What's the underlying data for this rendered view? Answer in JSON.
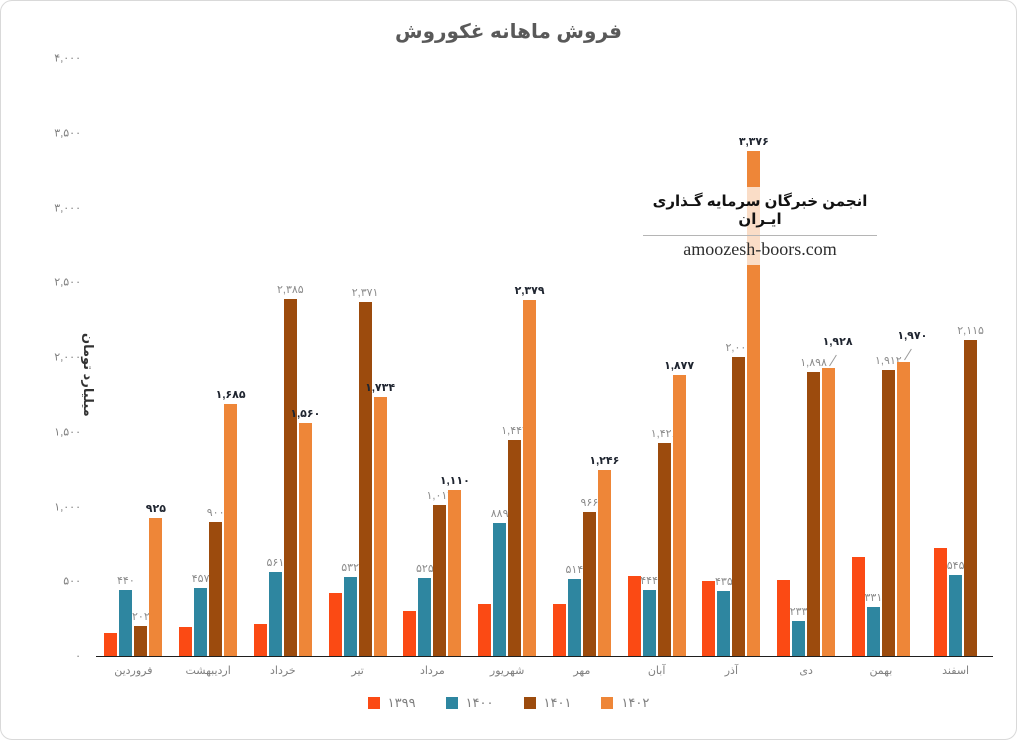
{
  "title": "فروش ماهانه غکوروش",
  "y_axis": {
    "title": "میلیارد تومان",
    "ticks": [
      "۴,۰۰۰",
      "۳,۵۰۰",
      "۳,۰۰۰",
      "۲,۵۰۰",
      "۲,۰۰۰",
      "۱,۵۰۰",
      "۱,۰۰۰",
      "۵۰۰",
      "۰"
    ],
    "max": 4000
  },
  "watermark": {
    "line1": "انجمن خبرگان سرمایه گـذاری ایـران",
    "line2": "amoozesh-boors.com"
  },
  "colors": {
    "series_1399": "#fb4a14",
    "series_1400": "#2e86a0",
    "series_1401": "#9c4b0d",
    "series_1402": "#ee8638",
    "label_gray": "#8c8c8c",
    "label_bold_dark": "#1f2530",
    "title_gray": "#595959"
  },
  "chart_data": {
    "type": "bar",
    "title": "فروش ماهانه غکوروش",
    "ylabel": "میلیارد تومان",
    "xlabel": "",
    "ylim": [
      0,
      4000
    ],
    "grid": false,
    "legend_position": "bottom",
    "categories": [
      "فروردین",
      "اردیبهشت",
      "خرداد",
      "تیر",
      "مرداد",
      "شهریور",
      "مهر",
      "آبان",
      "آذر",
      "دی",
      "بهمن",
      "اسفند"
    ],
    "series": [
      {
        "name": "۱۳۹۹",
        "color": "#fb4a14",
        "values": [
          155,
          195,
          215,
          420,
          300,
          345,
          350,
          535,
          500,
          510,
          665,
          725
        ],
        "labels": [
          null,
          null,
          null,
          null,
          null,
          null,
          null,
          null,
          null,
          null,
          null,
          null
        ],
        "note": "no data labels shown; values estimated from bar heights"
      },
      {
        "name": "۱۴۰۰",
        "color": "#2e86a0",
        "values": [
          440,
          457,
          561,
          532,
          525,
          889,
          514,
          444,
          435,
          233,
          331,
          545
        ],
        "labels": [
          "۴۴۰",
          "۴۵۷",
          "۵۶۱",
          "۵۳۲",
          "۵۲۵",
          "۸۸۹",
          "۵۱۴",
          "۴۴۴",
          "۴۳۵",
          "۲۳۳",
          "۳۳۱",
          "۵۴۵"
        ]
      },
      {
        "name": "۱۴۰۱",
        "color": "#9c4b0d",
        "values": [
          202,
          900,
          2385,
          2371,
          1013,
          1442,
          966,
          1426,
          2000,
          1898,
          1912,
          2115
        ],
        "labels": [
          "۲۰۲",
          "۹۰۰",
          "۲,۳۸۵",
          "۲,۳۷۱",
          "۱,۰۱۳",
          "۱,۴۴۲",
          "۹۶۶",
          "۱,۴۲۶",
          "۲,۰۰۰",
          "۱,۸۹۸",
          "۱,۹۱۲",
          "۲,۱۱۵"
        ]
      },
      {
        "name": "۱۴۰۲",
        "color": "#ee8638",
        "label_bold": true,
        "values": [
          925,
          1685,
          1560,
          1734,
          1110,
          2379,
          1246,
          1877,
          3376,
          1928,
          1970,
          null
        ],
        "labels": [
          "۹۲۵",
          "۱,۶۸۵",
          "۱,۵۶۰",
          "۱,۷۳۴",
          "۱,۱۱۰",
          "۲,۳۷۹",
          "۱,۲۴۶",
          "۱,۸۷۷",
          "۳,۳۷۶",
          "۱,۹۲۸",
          "۱,۹۷۰",
          null
        ]
      }
    ]
  },
  "legend": [
    {
      "label": "۱۳۹۹",
      "color": "#fb4a14"
    },
    {
      "label": "۱۴۰۰",
      "color": "#2e86a0"
    },
    {
      "label": "۱۴۰۱",
      "color": "#9c4b0d"
    },
    {
      "label": "۱۴۰۲",
      "color": "#ee8638"
    }
  ]
}
